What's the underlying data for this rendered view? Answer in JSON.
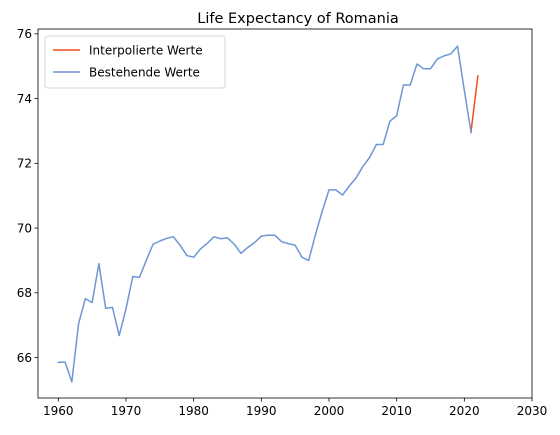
{
  "chart_data": {
    "type": "line",
    "title": "Life Expectancy of Romania",
    "xlabel": "",
    "ylabel": "",
    "xlim": [
      1957,
      2030
    ],
    "ylim": [
      64.75,
      76.15
    ],
    "xticks": [
      1960,
      1970,
      1980,
      1990,
      2000,
      2010,
      2020,
      2030
    ],
    "yticks": [
      66,
      68,
      70,
      72,
      74,
      76
    ],
    "grid": false,
    "legend_position": "top-left",
    "series": [
      {
        "name": "Interpolierte Werte",
        "color": "#f04e1e",
        "x": [
          2021,
          2022
        ],
        "y": [
          73.0,
          74.7
        ]
      },
      {
        "name": "Bestehende Werte",
        "color": "#6d96d6",
        "x": [
          1960,
          1961,
          1962,
          1963,
          1964,
          1965,
          1966,
          1967,
          1968,
          1969,
          1970,
          1971,
          1972,
          1973,
          1974,
          1975,
          1976,
          1977,
          1978,
          1979,
          1980,
          1981,
          1982,
          1983,
          1984,
          1985,
          1986,
          1987,
          1988,
          1989,
          1990,
          1991,
          1992,
          1993,
          1994,
          1995,
          1996,
          1997,
          1998,
          1999,
          2000,
          2001,
          2002,
          2003,
          2004,
          2005,
          2006,
          2007,
          2008,
          2009,
          2010,
          2011,
          2012,
          2013,
          2014,
          2015,
          2016,
          2017,
          2018,
          2019,
          2020,
          2021
        ],
        "y": [
          65.85,
          65.86,
          65.25,
          67.05,
          67.82,
          67.7,
          68.9,
          67.52,
          67.55,
          66.68,
          67.5,
          68.5,
          68.48,
          69.0,
          69.5,
          69.6,
          69.68,
          69.73,
          69.47,
          69.15,
          69.1,
          69.35,
          69.53,
          69.73,
          69.67,
          69.7,
          69.5,
          69.22,
          69.4,
          69.55,
          69.75,
          69.78,
          69.78,
          69.58,
          69.52,
          69.47,
          69.1,
          69.0,
          69.8,
          70.52,
          71.18,
          71.18,
          71.02,
          71.3,
          71.55,
          71.9,
          72.18,
          72.58,
          72.58,
          73.3,
          73.47,
          74.42,
          74.42,
          75.07,
          74.92,
          74.92,
          75.22,
          75.32,
          75.38,
          75.62,
          74.25,
          72.95
        ]
      }
    ]
  }
}
